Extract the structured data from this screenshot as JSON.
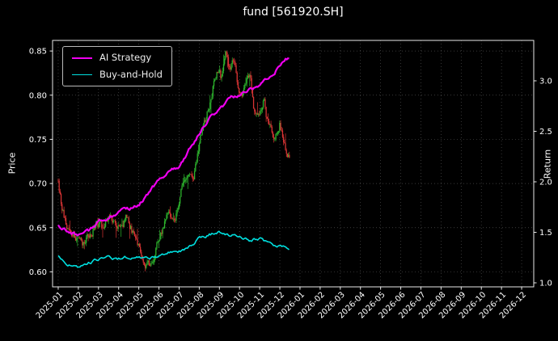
{
  "title": "fund [561920.SH]",
  "legend": {
    "position": "upper left",
    "items": [
      {
        "label": "AI Strategy",
        "color": "#f000f0",
        "lw": 2.2
      },
      {
        "label": "Buy-and-Hold",
        "color": "#00e0e0",
        "lw": 1.6
      }
    ]
  },
  "colors": {
    "background": "#000000",
    "text": "#ffffff",
    "grid": "#c8c8c8",
    "spine": "#e8e8e8",
    "candle_up": "#2db52d",
    "candle_down": "#d93434"
  },
  "chart_data": {
    "type": "mixed",
    "title": "fund [561920.SH]",
    "grid": true,
    "seed": 11,
    "x_axis": {
      "unit": "month index from 2025-01",
      "range": [
        -0.28,
        23.6
      ],
      "ticks": [
        "2025-01",
        "2025-02",
        "2025-03",
        "2025-04",
        "2025-05",
        "2025-06",
        "2025-07",
        "2025-08",
        "2025-09",
        "2025-10",
        "2025-11",
        "2025-12",
        "2026-01",
        "2026-02",
        "2026-03",
        "2026-04",
        "2026-05",
        "2026-06",
        "2026-07",
        "2026-08",
        "2026-09",
        "2026-10",
        "2026-11",
        "2026-12"
      ]
    },
    "left_axis": {
      "label": "Price",
      "range": [
        0.583,
        0.862
      ],
      "tick_values": [
        0.6,
        0.65,
        0.7,
        0.75,
        0.8,
        0.85
      ],
      "tick_labels": [
        "0.60",
        "0.65",
        "0.70",
        "0.75",
        "0.80",
        "0.85"
      ]
    },
    "right_axis": {
      "label": "Return",
      "range": [
        0.96,
        3.4
      ],
      "tick_values": [
        1.0,
        1.5,
        2.0,
        2.5,
        3.0
      ],
      "tick_labels": [
        "1.0",
        "1.5",
        "2.0",
        "2.5",
        "3.0"
      ]
    },
    "series": [
      {
        "name": "fund price candles",
        "type": "candlestick",
        "axis": "left",
        "up_color": "#2db52d",
        "down_color": "#d93434",
        "t_end": 11.5,
        "step": 0.048,
        "noise": 0.0045,
        "wick": 0.004,
        "wick_long": 0.013,
        "wick_long_p": 0.1,
        "anchors": {
          "t": [
            0,
            0.15,
            0.4,
            0.7,
            1.0,
            1.3,
            1.6,
            1.9,
            2.2,
            2.5,
            2.8,
            3.1,
            3.4,
            3.7,
            4.0,
            4.3,
            4.6,
            4.9,
            5.2,
            5.5,
            5.8,
            6.1,
            6.4,
            6.7,
            7.0,
            7.3,
            7.6,
            7.9,
            8.1,
            8.3,
            8.5,
            8.7,
            8.9,
            9.1,
            9.3,
            9.5,
            9.7,
            10.0,
            10.2,
            10.4,
            10.7,
            11.0,
            11.2,
            11.5
          ],
          "v": [
            0.703,
            0.678,
            0.655,
            0.645,
            0.638,
            0.63,
            0.642,
            0.655,
            0.648,
            0.662,
            0.655,
            0.65,
            0.662,
            0.645,
            0.628,
            0.612,
            0.604,
            0.63,
            0.652,
            0.668,
            0.658,
            0.695,
            0.712,
            0.705,
            0.745,
            0.772,
            0.8,
            0.832,
            0.82,
            0.845,
            0.828,
            0.842,
            0.812,
            0.8,
            0.818,
            0.828,
            0.788,
            0.772,
            0.792,
            0.768,
            0.752,
            0.77,
            0.742,
            0.726
          ]
        }
      },
      {
        "name": "AI Strategy",
        "type": "line",
        "axis": "right",
        "color": "#f000f0",
        "lw": 2.2,
        "t_end": 11.5,
        "step": 0.06,
        "noise": 0.015,
        "anchors": {
          "t": [
            0,
            0.5,
            1,
            1.5,
            2,
            2.5,
            3,
            3.5,
            4,
            4.5,
            5,
            5.5,
            6,
            6.5,
            7,
            7.5,
            8,
            8.5,
            9,
            9.5,
            10,
            10.5,
            11,
            11.5
          ],
          "v": [
            1.56,
            1.5,
            1.47,
            1.5,
            1.6,
            1.65,
            1.7,
            1.72,
            1.78,
            1.88,
            2.02,
            2.1,
            2.15,
            2.32,
            2.48,
            2.62,
            2.72,
            2.82,
            2.86,
            2.92,
            2.96,
            3.05,
            3.15,
            3.24
          ]
        }
      },
      {
        "name": "Buy-and-Hold",
        "type": "line",
        "axis": "right",
        "color": "#00e0e0",
        "lw": 1.6,
        "t_end": 11.5,
        "step": 0.06,
        "noise": 0.012,
        "anchors": {
          "t": [
            0,
            0.5,
            1,
            1.5,
            2,
            2.5,
            3,
            3.5,
            4,
            4.5,
            5,
            5.5,
            6,
            6.5,
            7,
            7.5,
            8,
            8.5,
            9,
            9.5,
            10,
            10.5,
            11,
            11.5
          ],
          "v": [
            1.26,
            1.18,
            1.14,
            1.2,
            1.23,
            1.25,
            1.24,
            1.26,
            1.25,
            1.24,
            1.27,
            1.3,
            1.31,
            1.36,
            1.44,
            1.48,
            1.5,
            1.46,
            1.47,
            1.42,
            1.44,
            1.38,
            1.36,
            1.35
          ]
        }
      }
    ]
  }
}
